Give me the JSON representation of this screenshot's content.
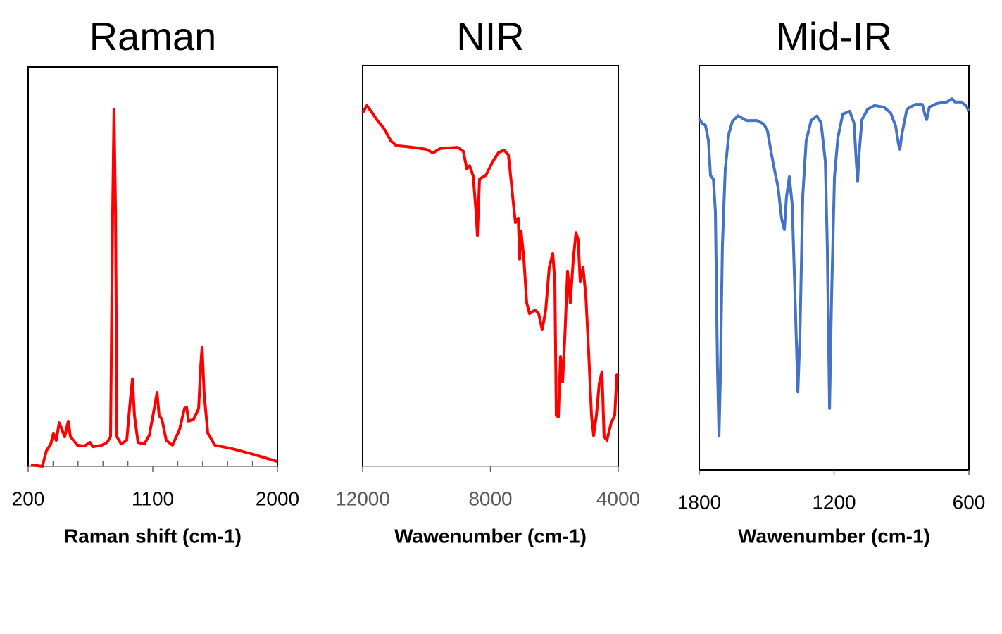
{
  "chart_data": [
    {
      "type": "line",
      "title": "Raman",
      "xlabel": "Raman shift (cm-1)",
      "color": "#ff0000",
      "xlim": [
        200,
        2000
      ],
      "ylim": [
        0,
        100
      ],
      "xticks": [
        200,
        1100,
        2000
      ],
      "xminorticks": [
        380,
        560,
        740,
        920,
        1280,
        1460,
        1640,
        1820
      ],
      "x": [
        220,
        302,
        332,
        363,
        383,
        403,
        424,
        444,
        464,
        490,
        505,
        556,
        607,
        647,
        668,
        734,
        770,
        795,
        810,
        820,
        831,
        841,
        871,
        912,
        937,
        953,
        968,
        993,
        1039,
        1075,
        1115,
        1131,
        1146,
        1166,
        1197,
        1242,
        1293,
        1329,
        1344,
        1359,
        1395,
        1431,
        1446,
        1456,
        1471,
        1497,
        1548,
        1675,
        1827,
        2000
      ],
      "values": [
        0.4,
        0,
        3.9,
        5.6,
        8.3,
        6.5,
        10.9,
        9.2,
        7.4,
        11.3,
        7.4,
        5.3,
        5.1,
        6.0,
        4.9,
        5.3,
        6.0,
        7.4,
        63.8,
        89.4,
        63.8,
        7.4,
        5.6,
        6.5,
        16.2,
        21.9,
        12.7,
        6.0,
        5.6,
        7.8,
        15.3,
        18.5,
        12.7,
        11.8,
        6.5,
        5.3,
        9.2,
        14.5,
        14.8,
        11.3,
        11.8,
        14.5,
        25.0,
        29.8,
        18.0,
        8.3,
        5.3,
        4.4,
        3.0,
        1.2
      ]
    },
    {
      "type": "line",
      "title": "NIR",
      "xlabel": "Wawenumber (cm-1)",
      "color": "#ff0000",
      "xlim": [
        12000,
        4000
      ],
      "ylim": [
        0,
        100
      ],
      "xticks": [
        12000,
        8000,
        4000
      ],
      "x": [
        12000,
        11868,
        11736,
        11559,
        11339,
        11118,
        10942,
        10678,
        10347,
        10016,
        9796,
        9576,
        9025,
        8848,
        8738,
        8650,
        8540,
        8452,
        8408,
        8342,
        8143,
        7923,
        7746,
        7570,
        7438,
        7350,
        7284,
        7217,
        7129,
        7085,
        7041,
        6953,
        6865,
        6777,
        6600,
        6490,
        6380,
        6270,
        6160,
        6049,
        5983,
        5939,
        5873,
        5807,
        5741,
        5675,
        5587,
        5499,
        5411,
        5323,
        5256,
        5190,
        5102,
        5014,
        4926,
        4838,
        4772,
        4684,
        4596,
        4508,
        4442,
        4354,
        4221,
        4111,
        4045,
        4000
      ],
      "values": [
        88.2,
        90.0,
        88.6,
        86.5,
        84.4,
        81.2,
        80.0,
        79.8,
        79.5,
        79.1,
        78.2,
        79.3,
        79.6,
        78.6,
        74.2,
        75.0,
        72.4,
        63.6,
        57.6,
        71.7,
        72.6,
        76.1,
        78.3,
        78.9,
        77.7,
        71.0,
        65.7,
        60.8,
        61.9,
        51.7,
        58.7,
        51.7,
        40.8,
        38.1,
        39.0,
        38.1,
        34.1,
        39.0,
        49.6,
        53.1,
        46.0,
        12.7,
        12.3,
        27.4,
        21.1,
        31.6,
        48.7,
        40.8,
        51.3,
        58.3,
        56.6,
        46.0,
        49.6,
        42.5,
        28.5,
        12.7,
        7.7,
        12.7,
        20.6,
        23.6,
        7.4,
        6.5,
        10.9,
        12.7,
        22.8,
        22.3
      ]
    },
    {
      "type": "line",
      "title": "Mid-IR",
      "xlabel": "Wawenumber (cm-1)",
      "color": "#4472c4",
      "xlim": [
        1800,
        600
      ],
      "ylim": [
        0,
        100
      ],
      "xticks": [
        1800,
        1200,
        600
      ],
      "x": [
        1800,
        1787,
        1772,
        1759,
        1750,
        1737,
        1728,
        1719,
        1712,
        1706,
        1697,
        1684,
        1668,
        1653,
        1628,
        1590,
        1543,
        1512,
        1496,
        1480,
        1465,
        1449,
        1433,
        1421,
        1412,
        1399,
        1386,
        1374,
        1361,
        1352,
        1339,
        1324,
        1302,
        1277,
        1258,
        1239,
        1230,
        1220,
        1211,
        1198,
        1183,
        1161,
        1130,
        1111,
        1101,
        1095,
        1089,
        1076,
        1051,
        1020,
        979,
        948,
        926,
        913,
        907,
        898,
        876,
        838,
        807,
        794,
        788,
        776,
        744,
        697,
        675,
        663,
        635,
        613,
        600
      ],
      "values": [
        86.9,
        85.7,
        85.2,
        81.4,
        72.8,
        71.9,
        63.9,
        25.8,
        8.4,
        22.3,
        55.2,
        74.4,
        83.1,
        86.1,
        87.6,
        86.4,
        86.4,
        85.5,
        83.8,
        78.6,
        74.2,
        69.9,
        62.0,
        59.4,
        67.3,
        72.5,
        65.5,
        43.2,
        19.3,
        33.1,
        67.9,
        81.4,
        86.4,
        87.5,
        85.9,
        76.3,
        55.2,
        15.2,
        43.0,
        72.5,
        82.1,
        88.0,
        88.7,
        85.7,
        76.1,
        71.3,
        77.9,
        86.6,
        89.2,
        90.1,
        89.7,
        88.3,
        85.0,
        80.5,
        79.3,
        83.1,
        89.2,
        90.4,
        90.4,
        87.5,
        86.6,
        89.7,
        90.6,
        91.0,
        91.8,
        91.0,
        91.0,
        90.1,
        88.7
      ]
    }
  ]
}
